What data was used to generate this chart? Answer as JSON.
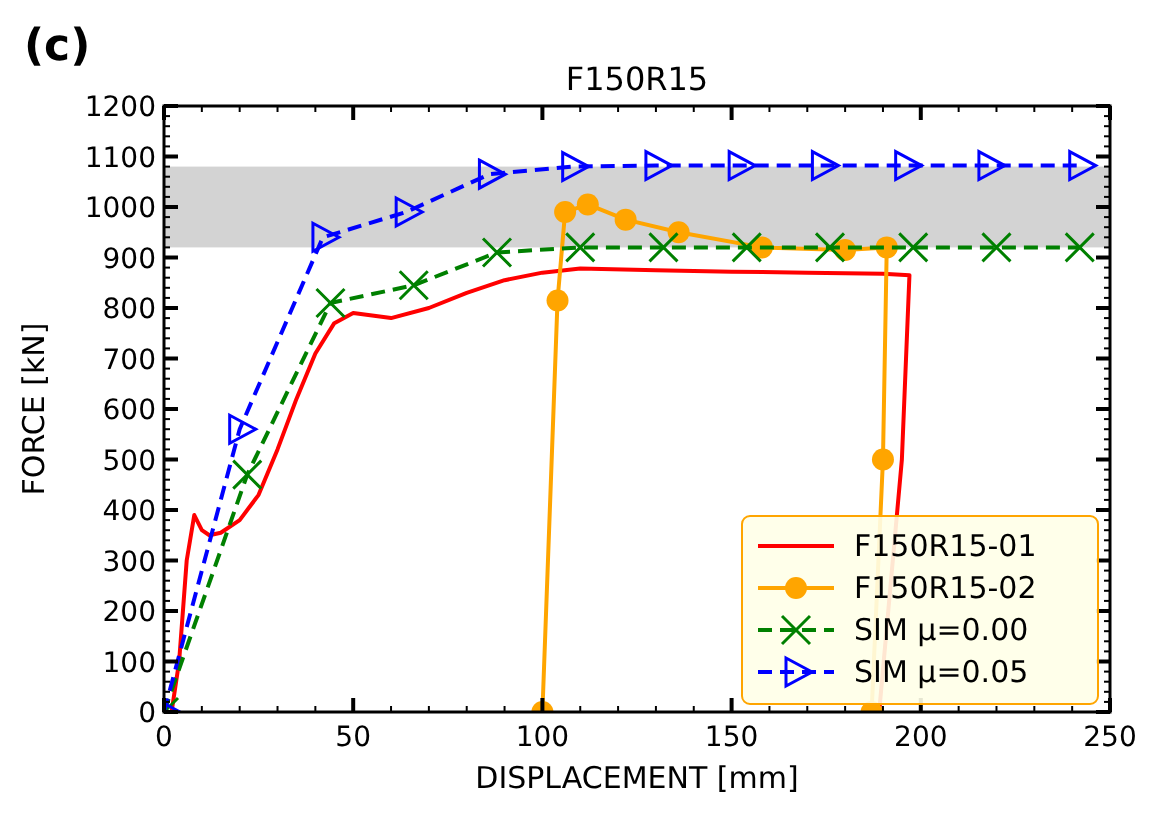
{
  "chart_data": {
    "type": "line",
    "title": "F150R15",
    "xlabel": "DISPLACEMENT [mm]",
    "ylabel": "FORCE [kN]",
    "annotations": [
      "(c)"
    ],
    "xlim": [
      0,
      250
    ],
    "xticks": [
      0,
      50,
      100,
      150,
      200,
      250
    ],
    "ylim": [
      0,
      1200
    ],
    "yticks": [
      0,
      100,
      200,
      300,
      400,
      500,
      600,
      700,
      800,
      900,
      1000,
      1100,
      1200
    ],
    "grid": false,
    "legend": "bottom right",
    "bands": [
      {
        "axis": "y",
        "from": 920,
        "to": 1080,
        "color": "#d3d3d3"
      }
    ],
    "series": [
      {
        "name": "F150R15-01",
        "color": "#ff0000",
        "marker": "none",
        "line_style": "solid",
        "x": [
          0,
          2,
          4,
          6,
          8,
          10,
          12,
          15,
          20,
          25,
          30,
          35,
          40,
          45,
          50,
          55,
          60,
          70,
          80,
          90,
          100,
          110,
          130,
          150,
          170,
          190,
          197,
          195,
          189
        ],
        "values": [
          0,
          0,
          100,
          300,
          390,
          360,
          350,
          355,
          380,
          430,
          520,
          620,
          710,
          770,
          790,
          785,
          780,
          800,
          830,
          855,
          870,
          878,
          875,
          872,
          870,
          868,
          865,
          500,
          0
        ]
      },
      {
        "name": "F150R15-02",
        "color": "#ffa500",
        "marker": "circle",
        "line_style": "solid",
        "x": [
          100,
          104,
          106,
          112,
          122,
          136,
          158,
          180,
          191,
          190,
          187
        ],
        "values": [
          0,
          815,
          990,
          1005,
          975,
          950,
          920,
          915,
          920,
          500,
          0
        ]
      },
      {
        "name": "SIM μ=0.00",
        "color": "#008000",
        "marker": "cross",
        "line_style": "dashed",
        "x": [
          0,
          22,
          44,
          66,
          88,
          110,
          132,
          154,
          176,
          198,
          220,
          242
        ],
        "values": [
          0,
          470,
          810,
          845,
          910,
          920,
          920,
          920,
          920,
          920,
          920,
          920
        ]
      },
      {
        "name": "SIM μ=0.05",
        "color": "#0000ff",
        "marker": "triangle",
        "line_style": "dashed",
        "x": [
          0,
          20,
          42,
          64,
          86,
          108,
          130,
          152,
          174,
          196,
          218,
          242
        ],
        "values": [
          0,
          560,
          940,
          990,
          1065,
          1080,
          1082,
          1082,
          1082,
          1082,
          1082,
          1082
        ]
      }
    ]
  }
}
